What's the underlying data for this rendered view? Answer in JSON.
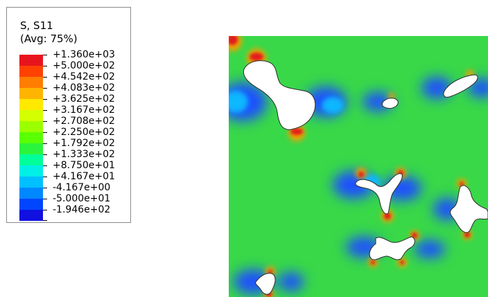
{
  "legend": {
    "title_line1": "S, S11",
    "title_line2": "(Avg: 75%)",
    "labels": [
      "+1.360e+03",
      "+5.000e+02",
      "+4.542e+02",
      "+4.083e+02",
      "+3.625e+02",
      "+3.167e+02",
      "+2.708e+02",
      "+2.250e+02",
      "+1.792e+02",
      "+1.333e+02",
      "+8.750e+01",
      "+4.167e+01",
      "-4.167e+00",
      "-5.000e+01",
      "-1.946e+02"
    ],
    "colors": [
      "#e8141d",
      "#ff4200",
      "#ff7d00",
      "#ffb400",
      "#ffe900",
      "#d4ff00",
      "#9bff00",
      "#5aff00",
      "#2bf43c",
      "#00ff9a",
      "#00f0e6",
      "#00c0ff",
      "#0088ff",
      "#0046ff",
      "#1010e0"
    ]
  },
  "field_colors": {
    "background": "#38d848",
    "tension_high": "#e21a1a",
    "tension_mid": "#f0a000",
    "compression": "#1c50ff",
    "compression_light": "#10b8ff",
    "void": "#ffffff"
  }
}
